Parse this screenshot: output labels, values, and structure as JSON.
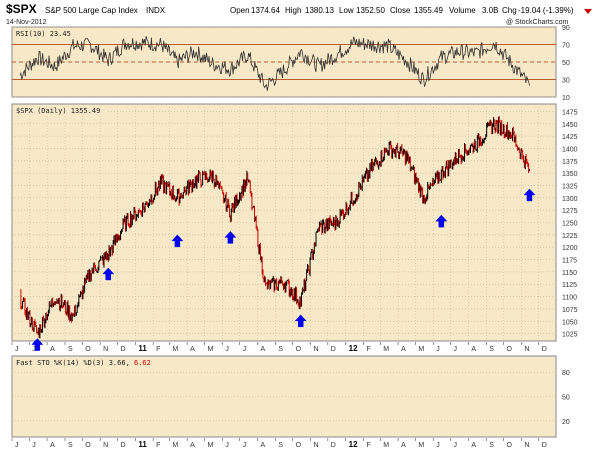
{
  "header": {
    "symbol": "$SPX",
    "name": "S&P 500 Large Cap Index",
    "exchange": "INDX",
    "date": "14-Nov-2012",
    "open_label": "Open",
    "open": "1374.64",
    "high_label": "High",
    "high": "1380.13",
    "low_label": "Low",
    "low": "1352.50",
    "close_label": "Close",
    "close": "1355.49",
    "volume_label": "Volume",
    "volume": "3.0B",
    "chg_label": "Chg",
    "chg": "-19.04 (-1.39%)",
    "watermark": "@ StockCharts.com"
  },
  "colors": {
    "panel_bg": "#f7e8c8",
    "grid": "#c9b58a",
    "price_up": "#000000",
    "price_down": "#cc0000",
    "arrow": "#0000ee",
    "rsi_line": "#333333",
    "rsi_ref": "#aa3300",
    "border": "#888888"
  },
  "icons": {
    "direction": "triangle-down-icon",
    "signal": "arrow-up-icon"
  },
  "chart_data": [
    {
      "type": "line",
      "panel": "rsi",
      "label": "RSI(10) 23.45",
      "ylim": [
        10,
        90
      ],
      "yticks": [
        10,
        30,
        50,
        70,
        90
      ],
      "reference_lines": [
        30,
        50,
        70
      ],
      "x": [
        "2010-06",
        "2010-07",
        "2010-08",
        "2010-09",
        "2010-10",
        "2010-11",
        "2010-12",
        "2011-01",
        "2011-02",
        "2011-03",
        "2011-04",
        "2011-05",
        "2011-06",
        "2011-07",
        "2011-08",
        "2011-09",
        "2011-10",
        "2011-11",
        "2011-12",
        "2012-01",
        "2012-02",
        "2012-03",
        "2012-04",
        "2012-05",
        "2012-06",
        "2012-07",
        "2012-08",
        "2012-09",
        "2012-10",
        "2012-11"
      ],
      "values": [
        35,
        55,
        45,
        68,
        70,
        52,
        72,
        72,
        70,
        50,
        62,
        48,
        42,
        58,
        22,
        40,
        62,
        45,
        58,
        72,
        70,
        68,
        52,
        30,
        55,
        62,
        60,
        72,
        48,
        23
      ]
    },
    {
      "type": "line",
      "panel": "price",
      "label": "$SPX (Daily) 1355.49",
      "ylim": [
        1010,
        1490
      ],
      "yticks": [
        1025,
        1050,
        1075,
        1100,
        1125,
        1150,
        1175,
        1200,
        1225,
        1250,
        1275,
        1300,
        1325,
        1350,
        1375,
        1400,
        1425,
        1450,
        1475
      ],
      "x": [
        "2010-06",
        "2010-07",
        "2010-08",
        "2010-09",
        "2010-10",
        "2010-11",
        "2010-12",
        "2011-01",
        "2011-02",
        "2011-03",
        "2011-04",
        "2011-05",
        "2011-06",
        "2011-07",
        "2011-08",
        "2011-09",
        "2011-10",
        "2011-11",
        "2011-12",
        "2012-01",
        "2012-02",
        "2012-03",
        "2012-04",
        "2012-05",
        "2012-06",
        "2012-07",
        "2012-08",
        "2012-09",
        "2012-10",
        "2012-11"
      ],
      "values": [
        1095,
        1025,
        1100,
        1060,
        1150,
        1185,
        1250,
        1280,
        1330,
        1300,
        1335,
        1345,
        1270,
        1340,
        1120,
        1130,
        1090,
        1240,
        1250,
        1300,
        1360,
        1400,
        1385,
        1300,
        1350,
        1385,
        1410,
        1450,
        1430,
        1355
      ]
    },
    {
      "type": "line",
      "panel": "stochastic",
      "label": "Fast STO %K(14) %D(3) 3.66, 6.62",
      "label_main": "Fast STO %K(14) %D(3) 3.66,",
      "label_d_value": "6.62",
      "ylim": [
        0,
        100
      ],
      "yticks": [
        20,
        50,
        80
      ]
    }
  ],
  "x_axis": {
    "months": [
      "J",
      "J",
      "A",
      "S",
      "O",
      "N",
      "D",
      "11",
      "F",
      "M",
      "A",
      "M",
      "J",
      "J",
      "A",
      "S",
      "O",
      "N",
      "D",
      "12",
      "F",
      "M",
      "A",
      "M",
      "J",
      "J",
      "A",
      "S",
      "O",
      "N",
      "D"
    ],
    "year_labels": [
      "11",
      "12"
    ]
  },
  "signal_arrows": [
    {
      "date": "2010-07",
      "price": 1015
    },
    {
      "date": "2010-11",
      "price": 1158
    },
    {
      "date": "2011-03",
      "price": 1225
    },
    {
      "date": "2011-06",
      "price": 1232
    },
    {
      "date": "2011-10",
      "price": 1063
    },
    {
      "date": "2012-06",
      "price": 1265
    },
    {
      "date": "2012-11",
      "price": 1318
    }
  ]
}
